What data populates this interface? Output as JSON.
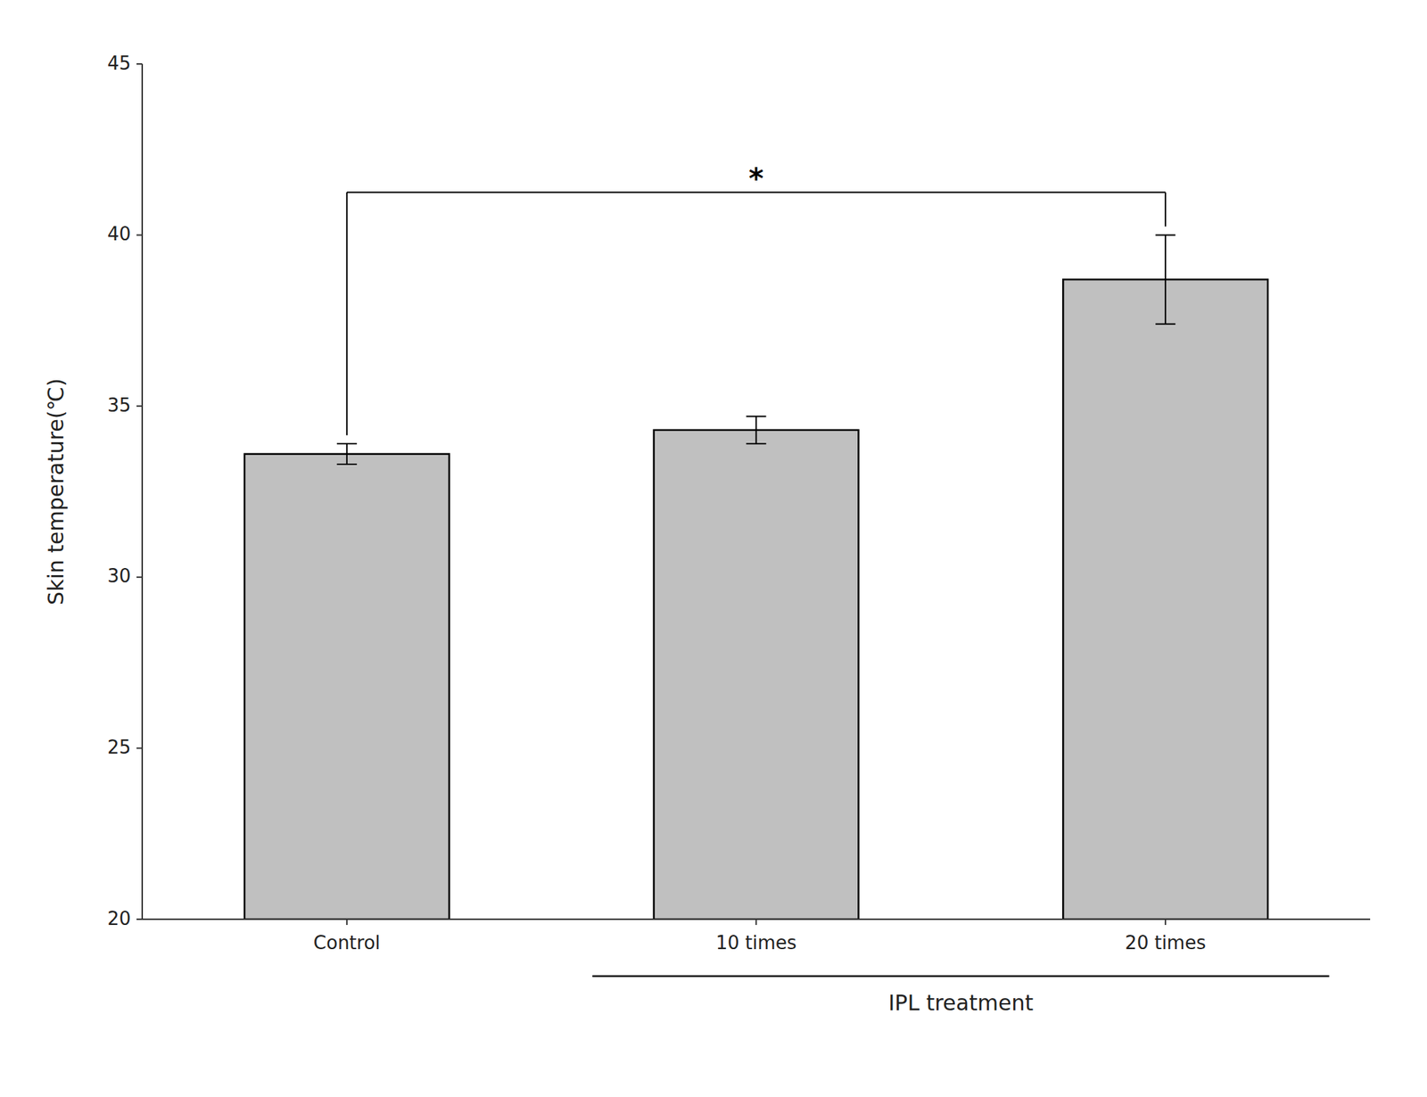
{
  "chart_data": {
    "type": "bar",
    "categories": [
      "Control",
      "10 times",
      "20 times"
    ],
    "values": [
      33.6,
      34.3,
      38.7
    ],
    "errors": [
      0.3,
      0.4,
      1.3
    ],
    "color": "#c0c0c0",
    "ylabel": "Skin temperature(℃)",
    "category_groups": [
      {
        "label": "IPL treatment",
        "categories": [
          "10 times",
          "20 times"
        ]
      }
    ],
    "annotations": [
      {
        "text": "*",
        "between": [
          "Control",
          "20 times"
        ]
      }
    ],
    "ylim": [
      20,
      45
    ],
    "yticks": [
      20,
      25,
      30,
      35,
      40,
      45
    ],
    "grid": false
  }
}
